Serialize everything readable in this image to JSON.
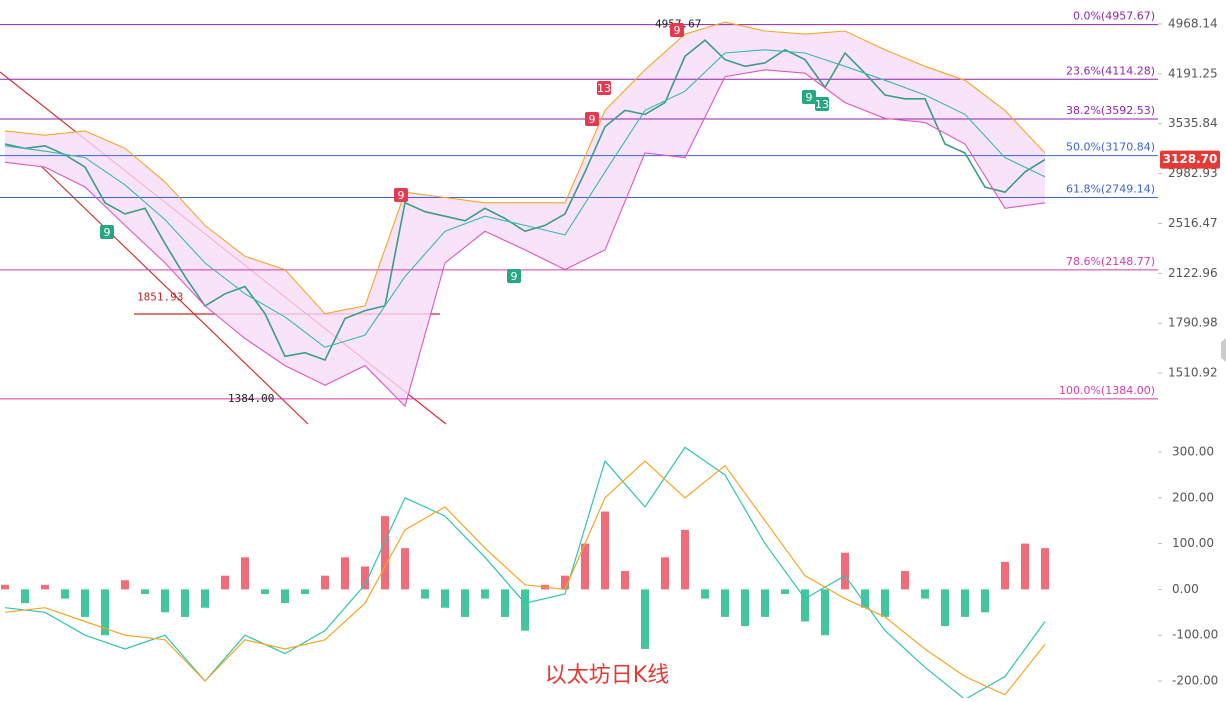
{
  "chart_data": [
    {
      "type": "line",
      "log_scale": true,
      "ylim": [
        1266,
        5391
      ],
      "yticks": [
        4968.14,
        4191.25,
        3535.84,
        2982.93,
        2516.47,
        2122.96,
        1790.98,
        1510.92
      ],
      "series": [
        {
          "name": "close",
          "color": "#3d9c86",
          "values": [
            3300,
            3250,
            3280,
            3180,
            3050,
            2700,
            2600,
            2650,
            2350,
            2100,
            1900,
            1980,
            2030,
            1850,
            1600,
            1620,
            1580,
            1820,
            1870,
            1900,
            2700,
            2620,
            2580,
            2540,
            2650,
            2560,
            2450,
            2500,
            2600,
            3000,
            3500,
            3700,
            3650,
            3800,
            4450,
            4700,
            4400,
            4300,
            4350,
            4550,
            4400,
            4000,
            4500,
            4200,
            3900,
            3850,
            3850,
            3300,
            3200,
            2850,
            2800,
            3000,
            3129
          ]
        },
        {
          "name": "upper",
          "color": "#f5a623",
          "values": [
            3450,
            3400,
            3450,
            3250,
            2900,
            2500,
            2250,
            2150,
            1850,
            1900,
            2800,
            2750,
            2700,
            2700,
            2700,
            3700,
            4250,
            4800,
            5000,
            4850,
            4800,
            4850,
            4550,
            4300,
            4100,
            3700,
            3200
          ]
        },
        {
          "name": "middle",
          "color": "#38b8b0",
          "values": [
            3280,
            3220,
            3150,
            2870,
            2550,
            2200,
            1980,
            1830,
            1650,
            1720,
            2100,
            2450,
            2580,
            2500,
            2420,
            3000,
            3700,
            3950,
            4500,
            4550,
            4500,
            4300,
            4100,
            3900,
            3650,
            3150,
            2950
          ]
        },
        {
          "name": "lower",
          "color": "#e055c0",
          "values": [
            3100,
            3050,
            2850,
            2500,
            2200,
            1900,
            1700,
            1550,
            1450,
            1550,
            1350,
            2200,
            2450,
            2300,
            2150,
            2300,
            3200,
            3150,
            4150,
            4250,
            4200,
            3800,
            3600,
            3550,
            3300,
            2650,
            2700
          ]
        }
      ],
      "fib_levels": [
        {
          "label": "0.0%(4957.67)",
          "value": 4957.67,
          "color": "#8e24aa"
        },
        {
          "label": "23.6%(4114.28)",
          "value": 4114.28,
          "color": "#8e24aa"
        },
        {
          "label": "38.2%(3592.53)",
          "value": 3592.53,
          "color": "#8e24aa"
        },
        {
          "label": "50.0%(3170.84)",
          "value": 3170.84,
          "color": "#3d63d6"
        },
        {
          "label": "61.8%(2749.14)",
          "value": 2749.14,
          "color": "#3d63d6"
        },
        {
          "label": "78.6%(2148.77)",
          "value": 2148.77,
          "color": "#d63aa8"
        },
        {
          "label": "100.0%(1384.00)",
          "value": 1384.0,
          "color": "#d63aa8"
        }
      ],
      "current_price": {
        "value": 3128.7,
        "label": "3128.70",
        "color": "#e53935"
      },
      "annotations": [
        {
          "value": 4957.67,
          "label": "4957.67"
        },
        {
          "value": 1851.93,
          "label": "1851.93"
        },
        {
          "value": 1384.0,
          "label": "1384.00"
        }
      ],
      "markers": [
        "9",
        "9",
        "13",
        "9",
        "9",
        "9",
        "9",
        "13"
      ]
    },
    {
      "type": "bar",
      "ylim": [
        -237,
        337
      ],
      "yticks": [
        {
          "value": 300,
          "label": "300.00"
        },
        {
          "value": 200,
          "label": "200.00"
        },
        {
          "value": 100,
          "label": "100.00"
        },
        {
          "value": 0,
          "label": "0.00"
        },
        {
          "value": -100,
          "label": "-100.00"
        },
        {
          "value": -200,
          "label": "-200.00"
        }
      ],
      "series": [
        {
          "name": "MACD",
          "colors": [
            "#ef6c78",
            "#43c59e"
          ],
          "values": [
            10,
            -30,
            10,
            -20,
            -60,
            -100,
            20,
            -10,
            -50,
            -60,
            -40,
            30,
            70,
            -10,
            -30,
            -10,
            30,
            70,
            50,
            160,
            90,
            -20,
            -40,
            -60,
            -20,
            -60,
            -90,
            10,
            30,
            100,
            170,
            40,
            -130,
            70,
            130,
            -20,
            -60,
            -80,
            -60,
            -10,
            -70,
            -100,
            80,
            -40,
            -60,
            40,
            -20,
            -80,
            -60,
            -50,
            60,
            100,
            90
          ]
        },
        {
          "name": "DIF",
          "color": "#2fc4b2",
          "values": [
            -40,
            -50,
            -100,
            -130,
            -100,
            -200,
            -100,
            -140,
            -90,
            10,
            200,
            160,
            70,
            -30,
            -10,
            280,
            180,
            310,
            250,
            100,
            -20,
            30,
            -90,
            -170,
            -240,
            -190,
            -70
          ]
        },
        {
          "name": "DEA",
          "color": "#f5a623",
          "values": [
            -50,
            -40,
            -70,
            -100,
            -110,
            -200,
            -110,
            -130,
            -110,
            -30,
            130,
            180,
            90,
            10,
            0,
            200,
            280,
            200,
            270,
            150,
            30,
            -20,
            -60,
            -130,
            -190,
            -230,
            -120
          ]
        }
      ]
    }
  ],
  "watermark": "以太坊日K线"
}
